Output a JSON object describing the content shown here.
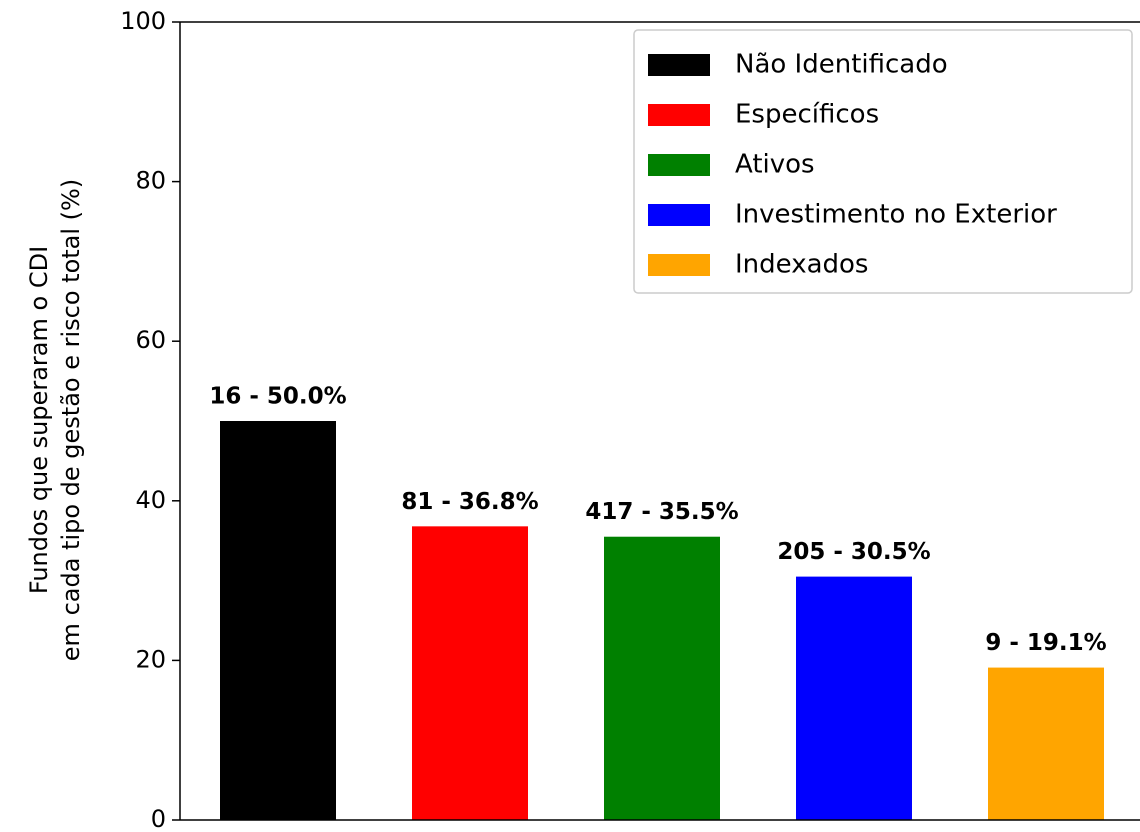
{
  "chart_data": {
    "type": "bar",
    "y_label": [
      "Fundos que superaram o CDI",
      "em cada tipo de gestão e risco total (%)"
    ],
    "categories": [
      "Não Identificado",
      "Específicos",
      "Ativos",
      "Investimento no Exterior",
      "Indexados"
    ],
    "values": [
      50.0,
      36.8,
      35.5,
      30.5,
      19.1
    ],
    "value_labels": [
      "16 - 50.0%",
      "81 - 36.8%",
      "417 - 35.5%",
      "205 - 30.5%",
      "9 - 19.1%"
    ],
    "colors": [
      "#000000",
      "#ff0000",
      "#008000",
      "#0000ff",
      "#ffa500"
    ],
    "ylim": [
      0,
      100
    ],
    "yticks": [
      0,
      20,
      40,
      60,
      80,
      100
    ],
    "legend": "upper right"
  }
}
